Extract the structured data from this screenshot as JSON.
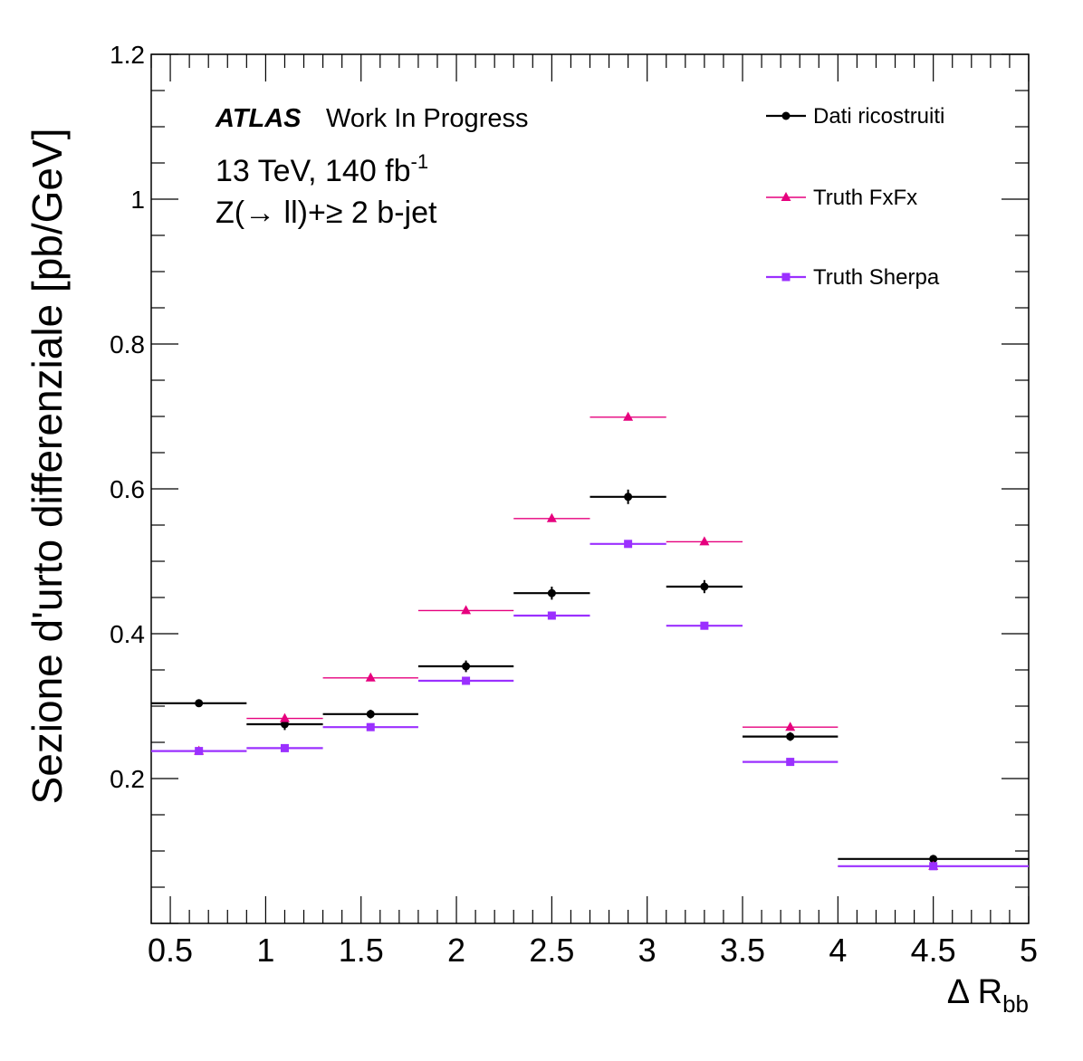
{
  "chart_data": {
    "type": "scatter",
    "ylabel": "Sezione d'urto differenziale [pb/GeV]",
    "xlabel": {
      "main": "Δ R",
      "sub": "bb"
    },
    "xlim": [
      0.4,
      5
    ],
    "ylim": [
      0,
      1.2
    ],
    "xticks": [
      "0.5",
      "1",
      "1.5",
      "2",
      "2.5",
      "3",
      "3.5",
      "4",
      "4.5",
      "5"
    ],
    "xtick_values": [
      0.5,
      1,
      1.5,
      2,
      2.5,
      3,
      3.5,
      4,
      4.5,
      5
    ],
    "yticks": [
      "0.2",
      "0.4",
      "0.6",
      "0.8",
      "1",
      "1.2"
    ],
    "ytick_values": [
      0.2,
      0.4,
      0.6,
      0.8,
      1.0,
      1.2
    ],
    "grid": false,
    "legend_position": "top-right",
    "annotation": {
      "atlas": "ATLAS",
      "status": "Work In Progress",
      "energy": "13 TeV, 140 fb",
      "energy_sup": "-1",
      "process": "Z(→ ll)+≥ 2 b-jet"
    },
    "bins": [
      [
        0.4,
        0.9
      ],
      [
        0.9,
        1.3
      ],
      [
        1.3,
        1.8
      ],
      [
        1.8,
        2.3
      ],
      [
        2.3,
        2.7
      ],
      [
        2.7,
        3.1
      ],
      [
        3.1,
        3.5
      ],
      [
        3.5,
        4.0
      ],
      [
        4.0,
        5.0
      ]
    ],
    "series": [
      {
        "name": "Dati ricostruiti",
        "color": "#000000",
        "marker": "circle",
        "x": [
          0.65,
          1.1,
          1.55,
          2.05,
          2.5,
          2.9,
          3.3,
          3.75,
          4.5
        ],
        "values": [
          0.304,
          0.275,
          0.289,
          0.355,
          0.456,
          0.589,
          0.465,
          0.258,
          0.089
        ],
        "errors": [
          0.004,
          0.008,
          0.006,
          0.008,
          0.009,
          0.01,
          0.009,
          0.006,
          0.004
        ]
      },
      {
        "name": "Truth FxFx",
        "color": "#e6007e",
        "marker": "triangle",
        "x": [
          0.65,
          1.1,
          1.55,
          2.05,
          2.5,
          2.9,
          3.3,
          3.75,
          4.5
        ],
        "values": [
          0.238,
          0.283,
          0.339,
          0.432,
          0.559,
          0.699,
          0.527,
          0.271,
          0.079
        ],
        "errors": [
          0,
          0,
          0,
          0,
          0,
          0,
          0,
          0,
          0
        ]
      },
      {
        "name": "Truth Sherpa",
        "color": "#9b30ff",
        "marker": "square",
        "x": [
          0.65,
          1.1,
          1.55,
          2.05,
          2.5,
          2.9,
          3.3,
          3.75,
          4.5
        ],
        "values": [
          0.238,
          0.242,
          0.271,
          0.335,
          0.425,
          0.524,
          0.411,
          0.223,
          0.079
        ],
        "errors": [
          0,
          0,
          0,
          0,
          0,
          0,
          0,
          0,
          0
        ]
      }
    ]
  }
}
